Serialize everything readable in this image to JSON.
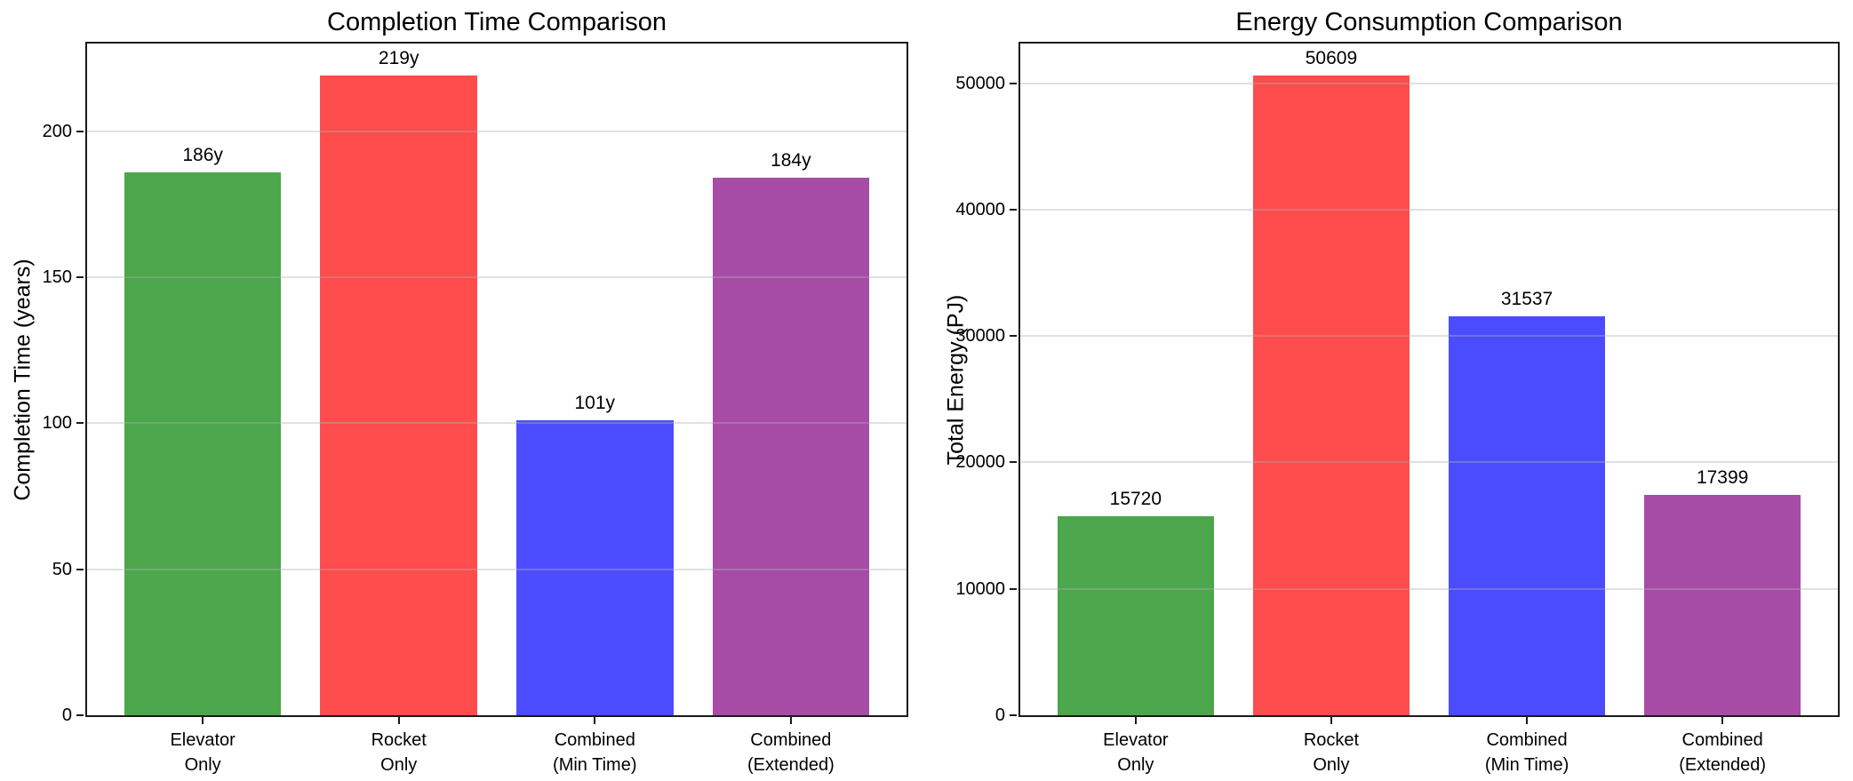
{
  "figure": {
    "background": "#ffffff",
    "spine_color": "#1a1a1a"
  },
  "chart_data": [
    {
      "type": "bar",
      "title": "Completion Time Comparison",
      "ylabel": "Completion Time (years)",
      "xlabel": "",
      "categories": [
        "Elevator\nOnly",
        "Rocket\nOnly",
        "Combined\n(Min Time)",
        "Combined\n(Extended)"
      ],
      "values": [
        186,
        219,
        101,
        184
      ],
      "bar_labels": [
        "186y",
        "219y",
        "101y",
        "184y"
      ],
      "bar_colors": [
        "#4ca64c",
        "#ff4c4c",
        "#4c4cff",
        "#a64ca6"
      ],
      "ylim": [
        0,
        230
      ],
      "yticks": [
        0,
        50,
        100,
        150,
        200
      ],
      "grid": true,
      "legend": "none"
    },
    {
      "type": "bar",
      "title": "Energy Consumption Comparison",
      "ylabel": "Total Energy (PJ)",
      "xlabel": "",
      "categories": [
        "Elevator\nOnly",
        "Rocket\nOnly",
        "Combined\n(Min Time)",
        "Combined\n(Extended)"
      ],
      "values": [
        15720,
        50609,
        31537,
        17399
      ],
      "bar_labels": [
        "15720",
        "50609",
        "31537",
        "17399"
      ],
      "bar_colors": [
        "#4ca64c",
        "#ff4c4c",
        "#4c4cff",
        "#a64ca6"
      ],
      "ylim": [
        0,
        53140
      ],
      "yticks": [
        0,
        10000,
        20000,
        30000,
        40000,
        50000
      ],
      "grid": true,
      "legend": "none"
    }
  ]
}
